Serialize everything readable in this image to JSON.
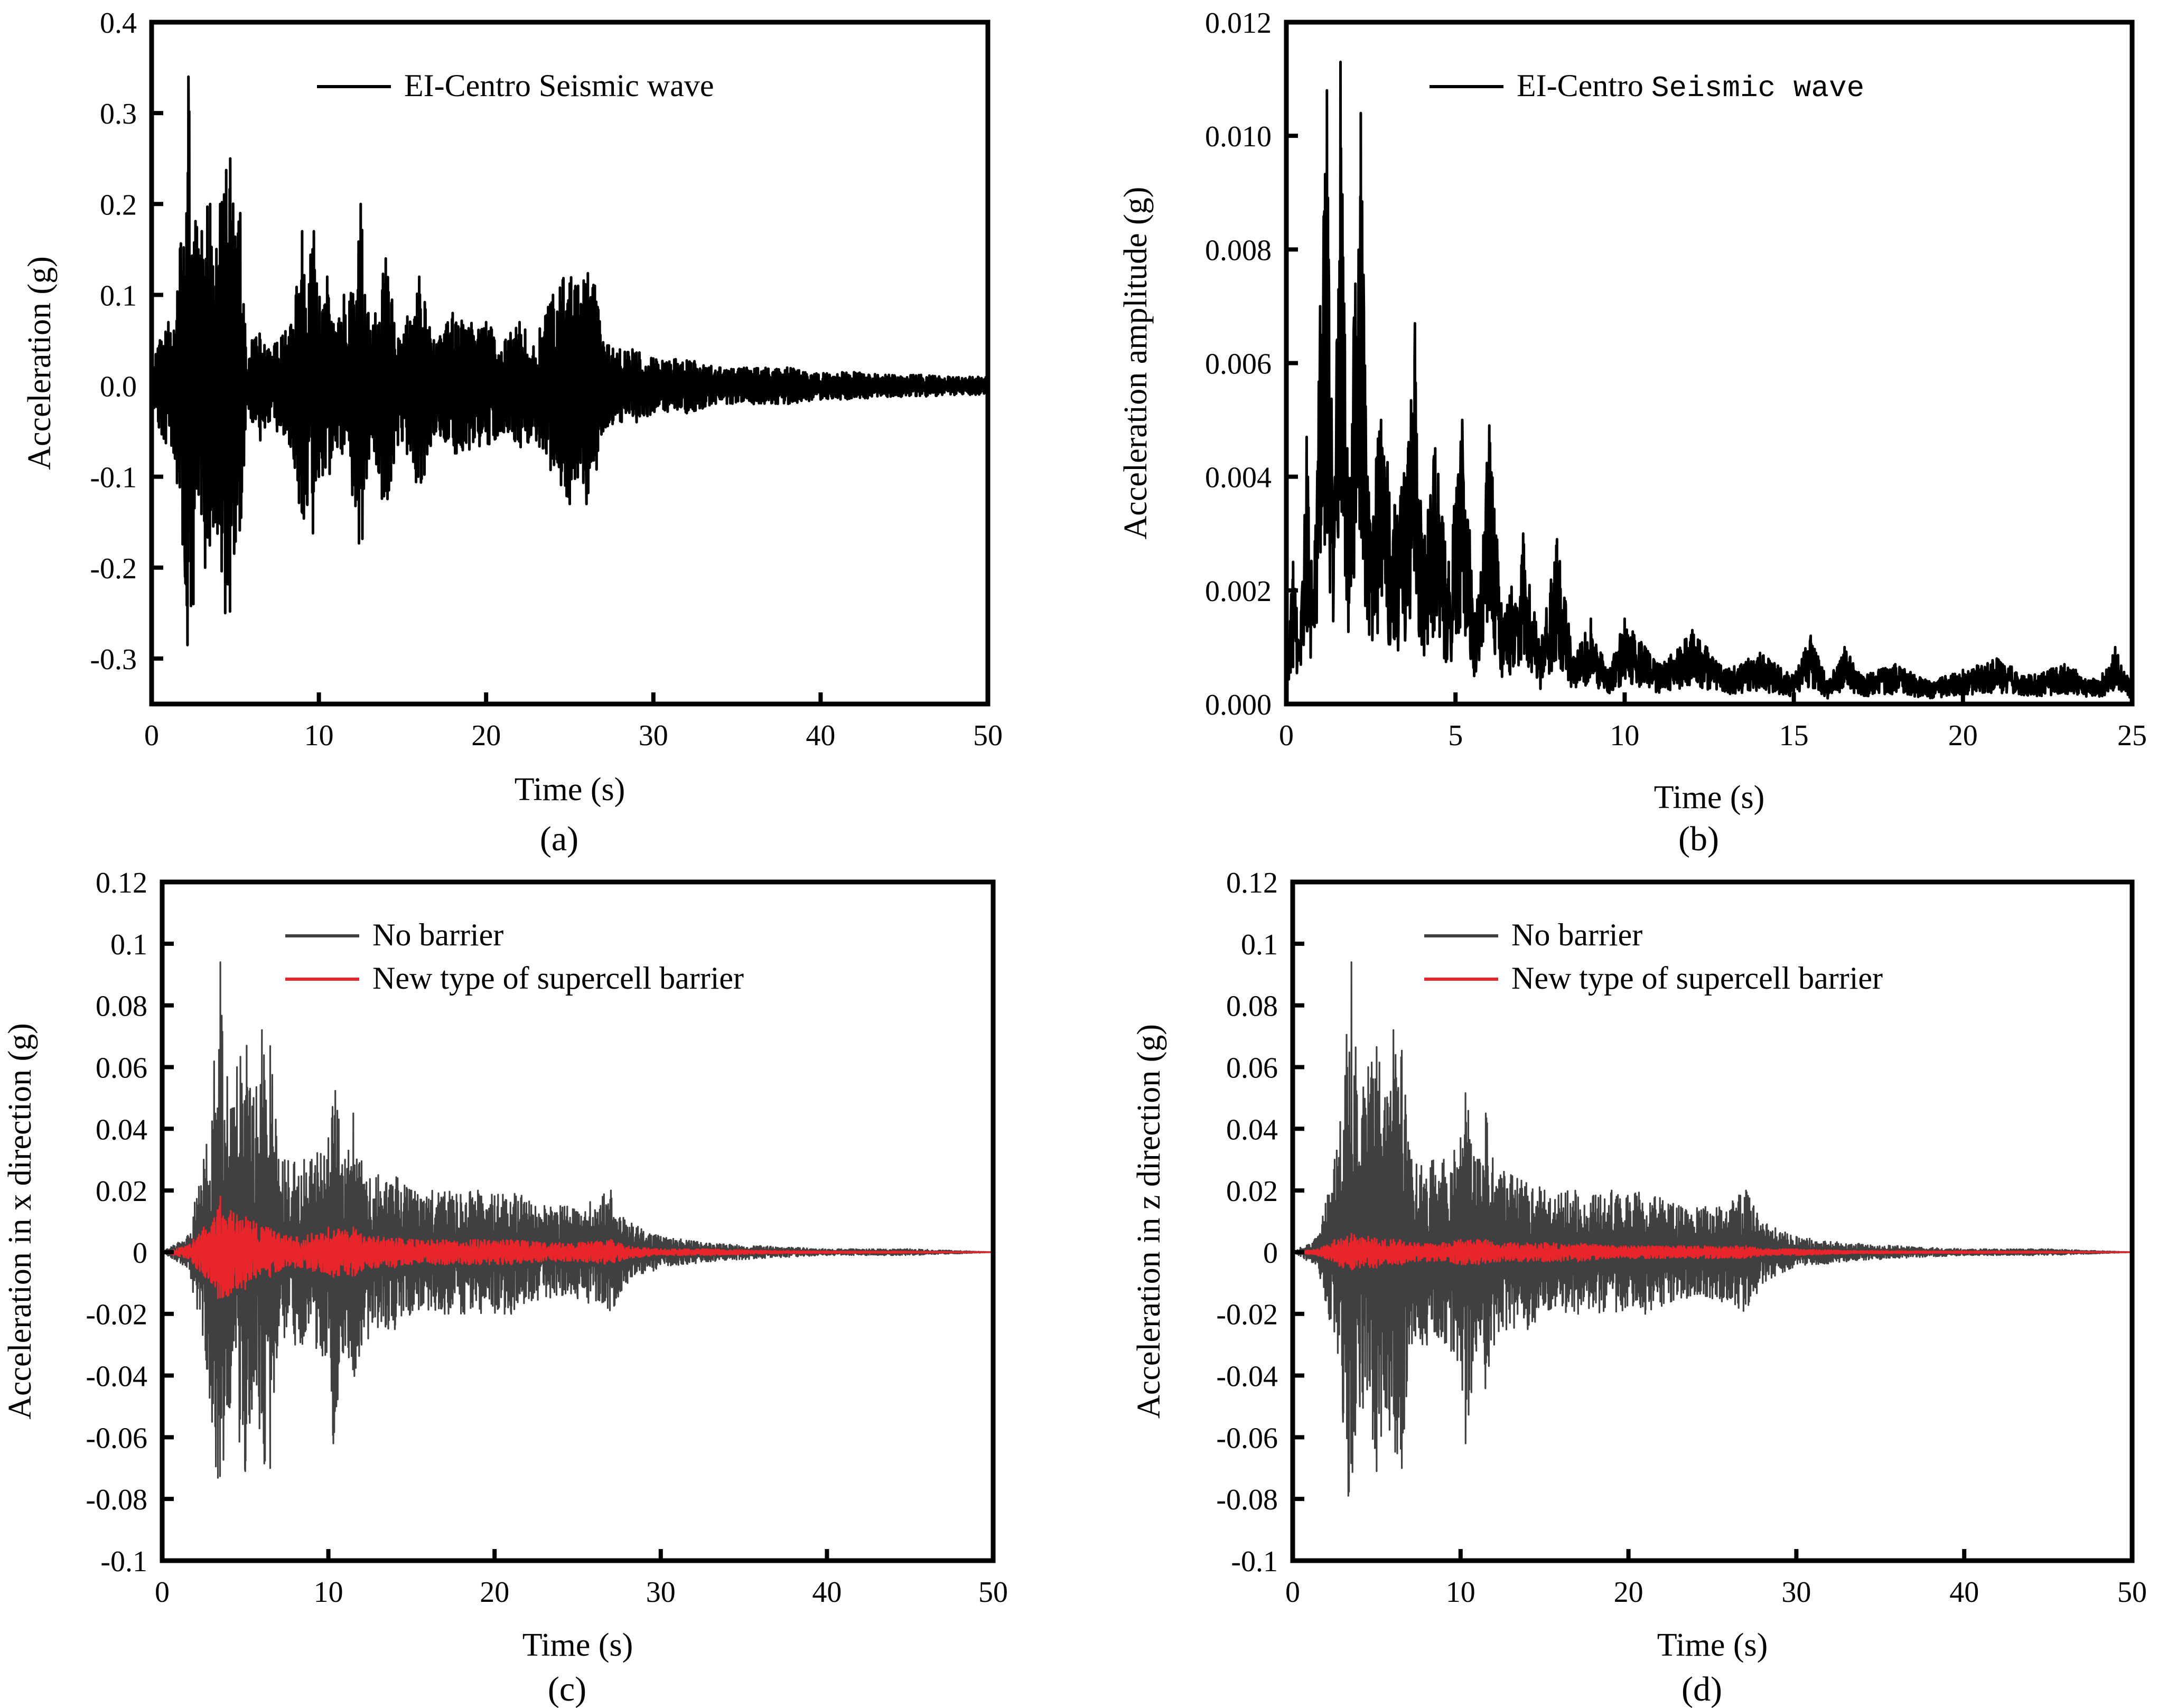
{
  "chart_data": [
    {
      "id": "a",
      "type": "line",
      "panel_label": "(a)",
      "xlabel": "Time (s)",
      "ylabel": "Acceleration (g)",
      "xlim": [
        0,
        50
      ],
      "ylim": [
        -0.35,
        0.4
      ],
      "xticks": [
        0,
        10,
        20,
        30,
        40,
        50
      ],
      "xtick_labels": [
        "0",
        "10",
        "20",
        "30",
        "40",
        "50"
      ],
      "yticks": [
        -0.3,
        -0.2,
        -0.1,
        0.0,
        0.1,
        0.2,
        0.3,
        0.4
      ],
      "ytick_labels": [
        "-0.3",
        "-0.2",
        "-0.1",
        "0.0",
        "0.1",
        "0.2",
        "0.3",
        "0.4"
      ],
      "legend_position": "top-right",
      "series": [
        {
          "name": "EI-Centro Seismic wave",
          "color": "#000000",
          "x": [
            0.0,
            0.5,
            1.0,
            1.4,
            1.7,
            2.0,
            2.2,
            2.5,
            2.8,
            3.2,
            3.5,
            3.8,
            4.1,
            4.4,
            4.7,
            5.0,
            5.3,
            5.7,
            6.0,
            6.5,
            7.0,
            7.5,
            8.0,
            8.5,
            9.0,
            9.3,
            9.7,
            10.0,
            10.5,
            11.0,
            11.5,
            12.0,
            12.5,
            13.0,
            14.0,
            15.0,
            16.0,
            17.0,
            18.0,
            19.0,
            20.0,
            21.0,
            22.0,
            23.0,
            24.0,
            25.0,
            25.5,
            26.0,
            26.5,
            27.0,
            28.0,
            29.0,
            30.0,
            32.0,
            34.0,
            36.0,
            38.0,
            40.0,
            42.0,
            44.0,
            46.0,
            48.0,
            50.0
          ],
          "y": [
            -0.02,
            0.05,
            0.07,
            -0.08,
            0.15,
            -0.21,
            0.34,
            -0.24,
            0.15,
            -0.2,
            0.2,
            -0.15,
            0.2,
            -0.25,
            0.25,
            -0.17,
            0.19,
            -0.02,
            0.05,
            -0.06,
            0.04,
            -0.05,
            0.06,
            -0.08,
            0.17,
            -0.13,
            0.17,
            -0.1,
            0.12,
            -0.06,
            0.1,
            -0.12,
            0.2,
            -0.08,
            0.14,
            -0.06,
            0.12,
            -0.05,
            0.08,
            -0.07,
            0.07,
            -0.05,
            0.07,
            -0.06,
            0.1,
            -0.13,
            0.11,
            -0.13,
            0.11,
            -0.05,
            0.04,
            -0.04,
            0.03,
            -0.03,
            0.02,
            -0.02,
            0.02,
            -0.015,
            0.015,
            -0.012,
            0.012,
            -0.01,
            0.01
          ]
        }
      ]
    },
    {
      "id": "b",
      "type": "line",
      "panel_label": "(b)",
      "xlabel": "Time (s)",
      "ylabel": "Acceleration amplitude (g)",
      "xlim": [
        0,
        25
      ],
      "ylim": [
        0,
        0.012
      ],
      "xticks": [
        0,
        5,
        10,
        15,
        20,
        25
      ],
      "xtick_labels": [
        "0",
        "5",
        "10",
        "15",
        "20",
        "25"
      ],
      "yticks": [
        0.0,
        0.002,
        0.004,
        0.006,
        0.008,
        0.01,
        0.012
      ],
      "ytick_labels": [
        "0.000",
        "0.002",
        "0.004",
        "0.006",
        "0.008",
        "0.010",
        "0.012"
      ],
      "legend_position": "top-right",
      "legend_label_main": "EI-Centro",
      "legend_label_suffix": "Seismic wave",
      "series": [
        {
          "name": "EI-Centro Seismic wave",
          "color": "#000000",
          "x": [
            0.0,
            0.2,
            0.4,
            0.6,
            0.8,
            1.0,
            1.2,
            1.4,
            1.6,
            1.8,
            2.0,
            2.2,
            2.4,
            2.8,
            3.2,
            3.6,
            3.8,
            4.0,
            4.4,
            4.8,
            5.2,
            5.6,
            6.0,
            6.4,
            7.0,
            7.5,
            8.0,
            8.5,
            9.0,
            9.5,
            10.0,
            11.0,
            12.0,
            13.0,
            14.0,
            15.0,
            15.5,
            16.0,
            16.5,
            17.0,
            18.0,
            19.0,
            20.0,
            21.0,
            22.0,
            23.0,
            24.0,
            24.5,
            25.0
          ],
          "y": [
            0.0005,
            0.0025,
            0.001,
            0.0047,
            0.002,
            0.007,
            0.0108,
            0.003,
            0.0113,
            0.0045,
            0.0068,
            0.0104,
            0.004,
            0.005,
            0.0035,
            0.0045,
            0.0067,
            0.003,
            0.0045,
            0.0025,
            0.005,
            0.0015,
            0.0049,
            0.0015,
            0.003,
            0.001,
            0.0029,
            0.0008,
            0.0015,
            0.0006,
            0.0015,
            0.0007,
            0.0013,
            0.0006,
            0.0009,
            0.0005,
            0.0012,
            0.0004,
            0.001,
            0.0005,
            0.0007,
            0.0004,
            0.0006,
            0.0008,
            0.0005,
            0.0007,
            0.0004,
            0.001,
            0.0003
          ]
        }
      ]
    },
    {
      "id": "c",
      "type": "line",
      "panel_label": "(c)",
      "xlabel": "Time (s)",
      "ylabel": "Acceleration in x direction (g)",
      "xlim": [
        0,
        50
      ],
      "ylim": [
        -0.1,
        0.12
      ],
      "xticks": [
        0,
        10,
        20,
        30,
        40,
        50
      ],
      "xtick_labels": [
        "0",
        "10",
        "20",
        "30",
        "40",
        "50"
      ],
      "yticks": [
        -0.1,
        -0.08,
        -0.06,
        -0.04,
        -0.02,
        0,
        0.02,
        0.04,
        0.06,
        0.08,
        0.1,
        0.12
      ],
      "ytick_labels": [
        "-0.1",
        "-0.08",
        "-0.06",
        "-0.04",
        "-0.02",
        "0",
        "0.02",
        "0.04",
        "0.06",
        "0.08",
        "0.1",
        "0.12"
      ],
      "legend_position": "top-right",
      "series": [
        {
          "name": "No barrier",
          "color": "#404040",
          "x": [
            0,
            1.5,
            2.5,
            3.0,
            3.5,
            4.0,
            4.5,
            5.0,
            5.5,
            6.0,
            6.5,
            7.0,
            8.0,
            9.0,
            10.0,
            10.3,
            11.0,
            11.5,
            12.0,
            13.0,
            14.0,
            15.0,
            17.0,
            19.0,
            21.0,
            23.0,
            25.0,
            27.0,
            28.0,
            30.0,
            33.0,
            36.0,
            40.0,
            45.0,
            50.0
          ],
          "y": [
            0,
            0.005,
            0.03,
            -0.055,
            0.094,
            -0.05,
            0.06,
            -0.071,
            0.05,
            0.072,
            -0.07,
            0.03,
            -0.03,
            0.03,
            0.037,
            -0.062,
            0.03,
            0.045,
            -0.03,
            0.025,
            -0.025,
            0.02,
            -0.02,
            0.02,
            -0.02,
            0.015,
            -0.015,
            0.02,
            -0.01,
            0.005,
            -0.003,
            0.002,
            -0.001,
            0.001,
            0.0
          ]
        },
        {
          "name": "New type of supercell barrier",
          "color": "#e8252b",
          "x": [
            0,
            1.5,
            2.5,
            3.0,
            3.5,
            4.0,
            4.5,
            5.0,
            5.5,
            6.0,
            6.5,
            7.0,
            8.0,
            9.0,
            10.0,
            10.3,
            11.0,
            11.5,
            12.0,
            13.0,
            14.0,
            15.0,
            17.0,
            19.0,
            21.0,
            23.0,
            25.0,
            27.0,
            28.0,
            30.0,
            33.0,
            36.0,
            40.0,
            45.0,
            50.0
          ],
          "y": [
            0,
            0.002,
            0.008,
            -0.01,
            0.018,
            -0.014,
            0.012,
            -0.012,
            0.01,
            0.008,
            -0.008,
            0.006,
            -0.005,
            0.006,
            0.008,
            -0.008,
            0.007,
            0.008,
            -0.006,
            0.005,
            -0.005,
            0.004,
            -0.004,
            0.004,
            -0.004,
            0.003,
            -0.003,
            0.004,
            -0.002,
            0.001,
            -0.001,
            0.0005,
            -0.0003,
            0.0002,
            0.0
          ]
        }
      ]
    },
    {
      "id": "d",
      "type": "line",
      "panel_label": "(d)",
      "xlabel": "Time (s)",
      "ylabel": "Acceleration in z direction (g)",
      "xlim": [
        0,
        50
      ],
      "ylim": [
        -0.1,
        0.12
      ],
      "xticks": [
        0,
        10,
        20,
        30,
        40,
        50
      ],
      "xtick_labels": [
        "0",
        "10",
        "20",
        "30",
        "40",
        "50"
      ],
      "yticks": [
        -0.1,
        -0.08,
        -0.06,
        -0.04,
        -0.02,
        0,
        0.02,
        0.04,
        0.06,
        0.08,
        0.1,
        0.12
      ],
      "ytick_labels": [
        "-0.1",
        "-0.08",
        "-0.06",
        "-0.04",
        "-0.02",
        "0",
        "0.02",
        "0.04",
        "0.06",
        "0.08",
        "0.1",
        "0.12"
      ],
      "legend_position": "top-right",
      "series": [
        {
          "name": "No barrier",
          "color": "#404040",
          "x": [
            0,
            1.5,
            2.5,
            3.0,
            3.5,
            4.0,
            4.5,
            5.0,
            5.5,
            6.0,
            6.5,
            7.0,
            8.0,
            9.0,
            10.0,
            10.3,
            11.0,
            11.5,
            12.0,
            13.0,
            14.0,
            15.0,
            17.0,
            19.0,
            21.0,
            23.0,
            25.0,
            27.0,
            28.0,
            30.0,
            33.0,
            36.0,
            40.0,
            45.0,
            50.0
          ],
          "y": [
            0,
            0.005,
            0.03,
            -0.055,
            0.094,
            -0.05,
            0.06,
            -0.071,
            0.05,
            0.072,
            -0.07,
            0.03,
            -0.03,
            0.03,
            0.037,
            -0.062,
            0.03,
            0.045,
            -0.03,
            0.025,
            -0.025,
            0.02,
            -0.02,
            0.02,
            -0.02,
            0.015,
            -0.015,
            0.02,
            -0.01,
            0.005,
            -0.003,
            0.002,
            -0.001,
            0.001,
            0.0
          ]
        },
        {
          "name": "New type of supercell barrier",
          "color": "#e8252b",
          "x": [
            0,
            1.5,
            2.5,
            3.0,
            3.5,
            4.0,
            4.5,
            5.0,
            5.5,
            6.0,
            6.5,
            7.0,
            8.0,
            9.0,
            10.0,
            10.3,
            11.0,
            11.5,
            12.0,
            13.0,
            14.0,
            15.0,
            17.0,
            19.0,
            21.0,
            23.0,
            25.0,
            27.0,
            28.0,
            30.0,
            33.0,
            36.0,
            40.0,
            45.0,
            50.0
          ],
          "y": [
            0,
            0.001,
            0.004,
            -0.005,
            0.006,
            -0.005,
            0.005,
            -0.005,
            0.004,
            0.004,
            -0.004,
            0.003,
            -0.003,
            0.003,
            0.004,
            -0.004,
            0.004,
            0.004,
            -0.003,
            0.003,
            -0.003,
            0.003,
            -0.003,
            0.002,
            -0.002,
            0.002,
            -0.002,
            0.002,
            -0.001,
            0.001,
            -0.0005,
            0.0004,
            -0.0003,
            0.0002,
            0.0
          ]
        }
      ]
    }
  ]
}
